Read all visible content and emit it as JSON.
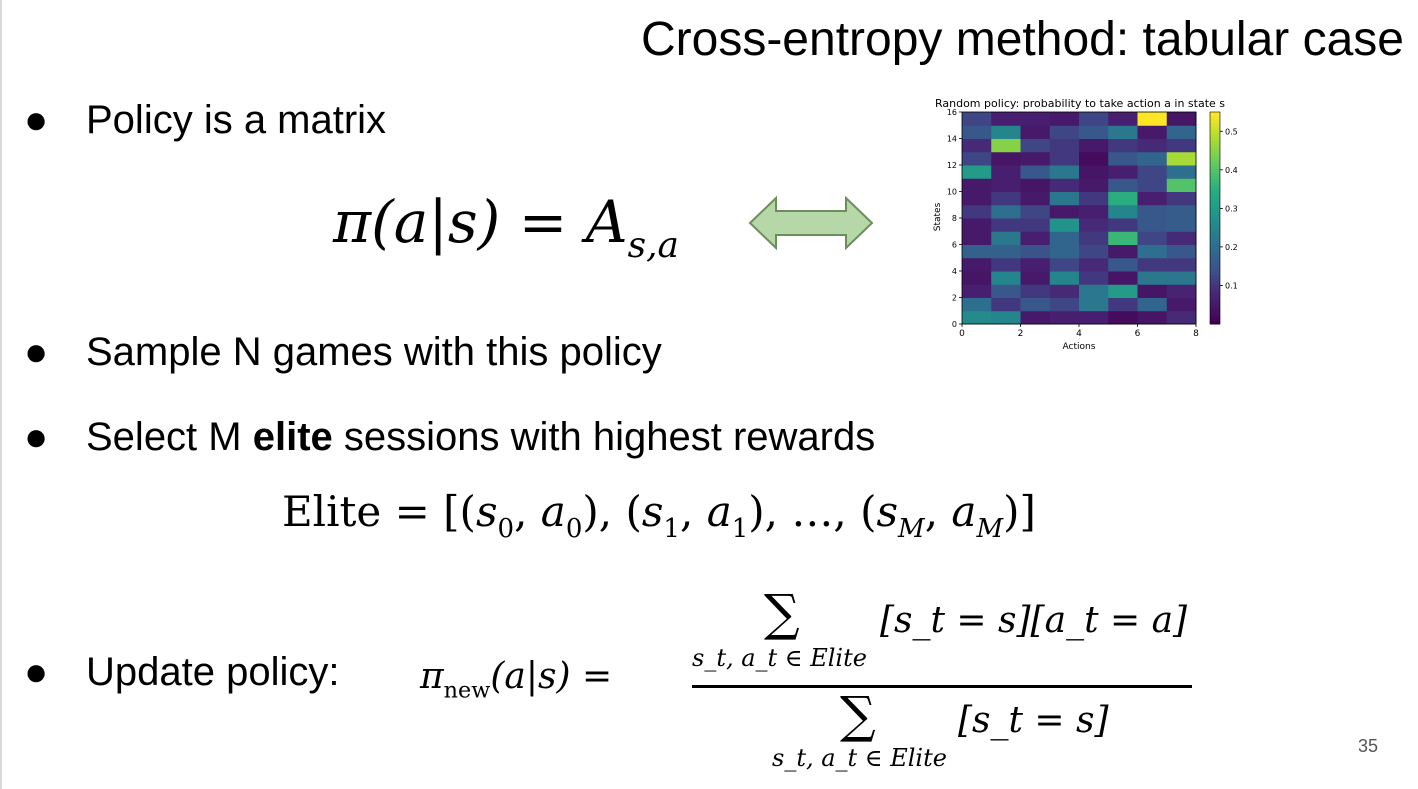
{
  "slide": {
    "title": "Cross-entropy method: tabular case",
    "page_number": "35",
    "bullet_symbol": "●",
    "bullets": [
      {
        "text": "Policy is a matrix"
      },
      {
        "text": "Sample N games with this policy"
      },
      {
        "before": "Select M ",
        "bold": "elite",
        "after": " sessions with highest rewards"
      },
      {
        "text": "Update policy:"
      }
    ],
    "equations": {
      "policy_pi": "π(a|s) = ",
      "policy_A": "A",
      "policy_sub": "s,a",
      "elite": {
        "lhs": "Elite = ",
        "s0": "s",
        "s0_sub": "0",
        "a0": "a",
        "a0_sub": "0",
        "s1": "s",
        "s1_sub": "1",
        "a1": "a",
        "a1_sub": "1",
        "dots": "…",
        "sM": "s",
        "sM_sub": "M",
        "aM": "a",
        "aM_sub": "M"
      },
      "update": {
        "lhs_pi": "π",
        "lhs_sub": "new",
        "lhs_rest": "(a|s) =",
        "sum_symbol": "∑",
        "numerator": "[s_t = s][a_t = a]",
        "denominator": "[s_t = s]",
        "sum_limit": "s_t, a_t ∈ Elite"
      }
    },
    "arrow_fill": "#b6d7a8",
    "arrow_stroke": "#6a8f5a"
  },
  "chart_data": {
    "type": "heatmap",
    "title": "Random policy: probability to take action a in state s",
    "xlabel": "Actions",
    "ylabel": "States",
    "x_ticks": [
      "0",
      "2",
      "4",
      "6",
      "8"
    ],
    "y_ticks": [
      "0",
      "2",
      "4",
      "6",
      "8",
      "10",
      "12",
      "14",
      "16"
    ],
    "colorbar_ticks": [
      "0.1",
      "0.2",
      "0.3",
      "0.4",
      "0.5"
    ],
    "xlim": [
      0,
      8
    ],
    "ylim": [
      0,
      16
    ],
    "vmin": 0.0,
    "vmax": 0.55,
    "colormap": "viridis",
    "rows_from_bottom": [
      [
        0.26,
        0.25,
        0.05,
        0.06,
        0.06,
        0.02,
        0.04,
        0.08
      ],
      [
        0.2,
        0.1,
        0.15,
        0.12,
        0.22,
        0.1,
        0.18,
        0.05
      ],
      [
        0.06,
        0.15,
        0.1,
        0.08,
        0.22,
        0.3,
        0.04,
        0.07
      ],
      [
        0.04,
        0.25,
        0.05,
        0.25,
        0.1,
        0.04,
        0.22,
        0.22
      ],
      [
        0.05,
        0.1,
        0.06,
        0.12,
        0.08,
        0.15,
        0.1,
        0.1
      ],
      [
        0.17,
        0.17,
        0.14,
        0.18,
        0.12,
        0.05,
        0.2,
        0.15
      ],
      [
        0.05,
        0.22,
        0.06,
        0.18,
        0.1,
        0.37,
        0.12,
        0.08
      ],
      [
        0.05,
        0.1,
        0.1,
        0.28,
        0.08,
        0.1,
        0.15,
        0.16
      ],
      [
        0.1,
        0.2,
        0.12,
        0.05,
        0.06,
        0.25,
        0.15,
        0.16
      ],
      [
        0.05,
        0.1,
        0.05,
        0.22,
        0.1,
        0.35,
        0.06,
        0.1
      ],
      [
        0.05,
        0.06,
        0.04,
        0.08,
        0.05,
        0.15,
        0.12,
        0.4
      ],
      [
        0.3,
        0.06,
        0.15,
        0.22,
        0.04,
        0.06,
        0.12,
        0.2
      ],
      [
        0.12,
        0.04,
        0.05,
        0.1,
        0.02,
        0.15,
        0.18,
        0.48
      ],
      [
        0.08,
        0.45,
        0.12,
        0.1,
        0.05,
        0.1,
        0.08,
        0.1
      ],
      [
        0.15,
        0.25,
        0.05,
        0.12,
        0.15,
        0.22,
        0.05,
        0.18
      ],
      [
        0.12,
        0.06,
        0.06,
        0.05,
        0.12,
        0.06,
        0.55,
        0.04
      ]
    ]
  }
}
